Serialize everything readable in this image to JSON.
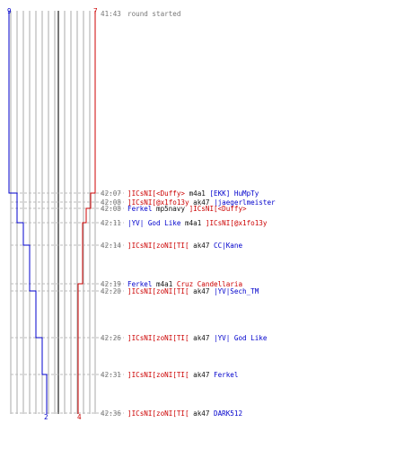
{
  "scores": {
    "blue_start": "9",
    "red_start": "7",
    "blue_end": "2",
    "red_end": "4"
  },
  "colors": {
    "blue_team": "#0000cc",
    "red_team": "#cc0000",
    "neutral_text": "#111111",
    "time_text": "#777777",
    "grid_line": "#aaaaaa",
    "center_line": "#555555",
    "dashed_line": "#bbbbbb"
  },
  "events": [
    {
      "time": "41:43",
      "segments": [
        {
          "text": "round started",
          "team": "time"
        }
      ]
    },
    {
      "time": "42:07",
      "segments": [
        {
          "text": "]ICsNI[<Duffy>",
          "team": "red"
        },
        {
          "text": " m4a1 ",
          "team": "neutral"
        },
        {
          "text": "[EKK] HuMpTy",
          "team": "blue"
        }
      ]
    },
    {
      "time": "42:08",
      "segments": [
        {
          "text": "]ICsNI[@x1fo13y",
          "team": "red"
        },
        {
          "text": " ak47 ",
          "team": "neutral"
        },
        {
          "text": "|jaegerlmeister",
          "team": "blue"
        }
      ]
    },
    {
      "time": "42:08",
      "segments": [
        {
          "text": "Ferkel",
          "team": "blue"
        },
        {
          "text": " mp5navy ",
          "team": "neutral"
        },
        {
          "text": "]ICsNI[<Duffy>",
          "team": "red"
        }
      ]
    },
    {
      "time": "42:11",
      "segments": [
        {
          "text": "|YV| God Like",
          "team": "blue"
        },
        {
          "text": " m4a1 ",
          "team": "neutral"
        },
        {
          "text": "]ICsNI[@x1fo13y",
          "team": "red"
        }
      ]
    },
    {
      "time": "42:14",
      "segments": [
        {
          "text": "]ICsNI[zoNI[TI[",
          "team": "red"
        },
        {
          "text": " ak47 ",
          "team": "neutral"
        },
        {
          "text": "CC|Kane",
          "team": "blue"
        }
      ]
    },
    {
      "time": "42:19",
      "segments": [
        {
          "text": "Ferkel",
          "team": "blue"
        },
        {
          "text": " m4a1 ",
          "team": "neutral"
        },
        {
          "text": "Cruz Candellaria",
          "team": "red"
        }
      ]
    },
    {
      "time": "42:20",
      "segments": [
        {
          "text": "]ICsNI[zoNI[TI[",
          "team": "red"
        },
        {
          "text": " ak47 ",
          "team": "neutral"
        },
        {
          "text": "|YV|Sech_TM",
          "team": "blue"
        }
      ]
    },
    {
      "time": "42:26",
      "segments": [
        {
          "text": "]ICsNI[zoNI[TI[",
          "team": "red"
        },
        {
          "text": " ak47 ",
          "team": "neutral"
        },
        {
          "text": "|YV| God Like",
          "team": "blue"
        }
      ]
    },
    {
      "time": "42:31",
      "segments": [
        {
          "text": "]ICsNI[zoNI[TI[",
          "team": "red"
        },
        {
          "text": " ak47 ",
          "team": "neutral"
        },
        {
          "text": "Ferkel",
          "team": "blue"
        }
      ]
    },
    {
      "time": "42:36",
      "segments": [
        {
          "text": "]ICsNI[zoNI[TI[",
          "team": "red"
        },
        {
          "text": " ak47 ",
          "team": "neutral"
        },
        {
          "text": "DARK512",
          "team": "blue"
        }
      ]
    }
  ]
}
